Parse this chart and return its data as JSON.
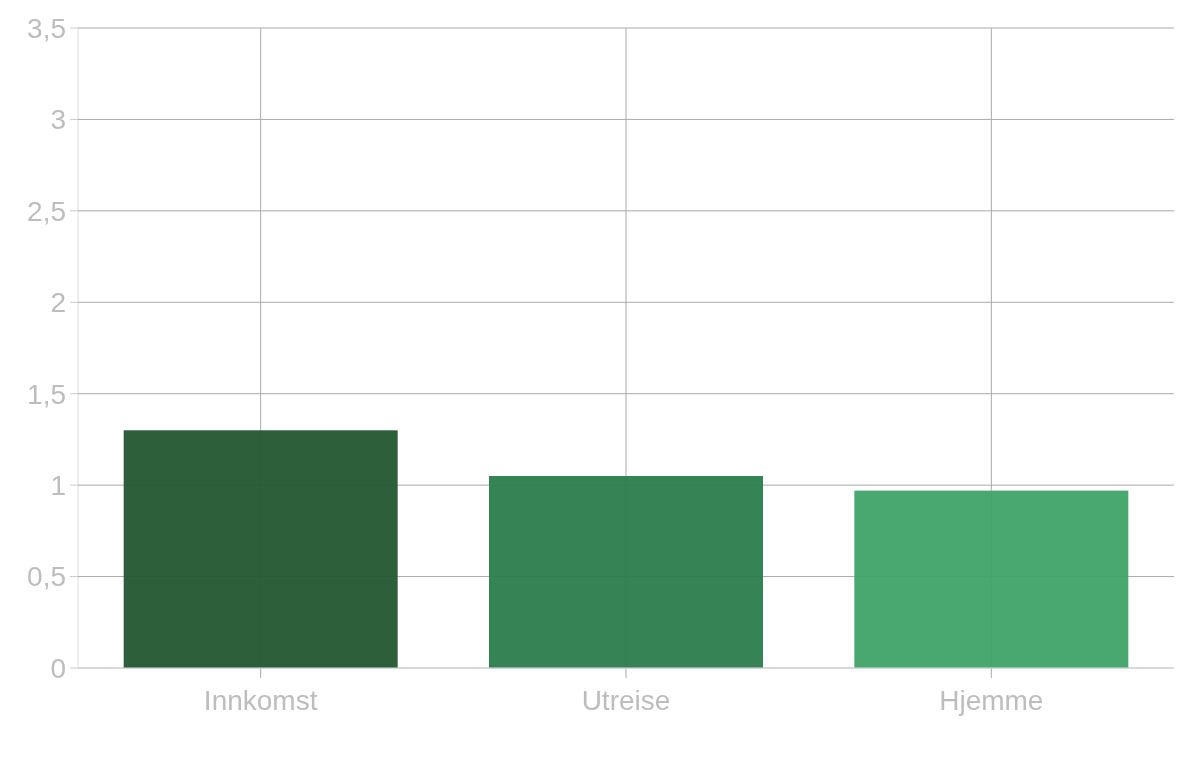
{
  "chart_data": {
    "type": "bar",
    "categories": [
      "Innkomst",
      "Utreise",
      "Hjemme"
    ],
    "values": [
      1.3,
      1.05,
      0.97
    ],
    "colors": [
      "#225630",
      "#2b7d4d",
      "#3ea368"
    ],
    "ylim": [
      0,
      3.5
    ],
    "yticks": [
      0,
      {
        "value": 0.5,
        "label": "0,5"
      },
      1,
      {
        "value": 1.5,
        "label": "1,5"
      },
      2,
      {
        "value": 2.5,
        "label": "2,5"
      },
      3,
      {
        "value": 3.5,
        "label": "3,5"
      }
    ],
    "grid": true
  }
}
